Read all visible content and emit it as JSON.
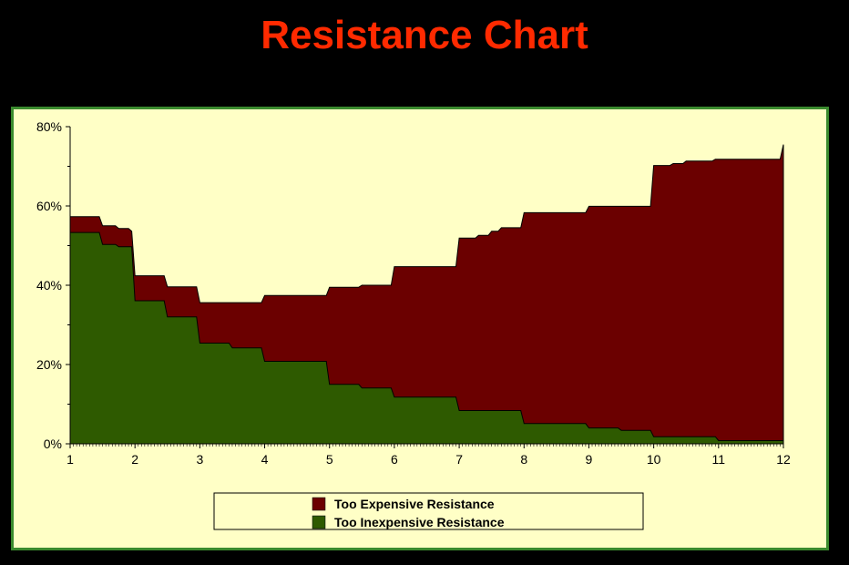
{
  "page": {
    "title": "Resistance Chart"
  },
  "colors": {
    "title": "#ff2a00",
    "background": "#000000",
    "panel_bg": "#ffffc6",
    "panel_border": "#3a8a2e",
    "too_expensive": "#6b0000",
    "too_inexpensive": "#2e5a00"
  },
  "chart_data": {
    "type": "area",
    "stacked": true,
    "xlim": [
      1,
      12
    ],
    "ylim": [
      0,
      80
    ],
    "x_ticks": [
      "1",
      "2",
      "3",
      "4",
      "5",
      "6",
      "7",
      "8",
      "9",
      "10",
      "11",
      "12"
    ],
    "y_ticks": [
      "0%",
      "20%",
      "40%",
      "60%",
      "80%"
    ],
    "grid": false,
    "legend_position": "bottom",
    "series": [
      {
        "name": "Too Expensive Resistance",
        "color": "#6b0000",
        "points": [
          [
            1,
            57.3
          ],
          [
            1.45,
            57.3
          ],
          [
            1.5,
            55.0
          ],
          [
            1.7,
            55.0
          ],
          [
            1.75,
            54.3
          ],
          [
            1.9,
            54.3
          ],
          [
            1.95,
            53.6
          ],
          [
            2,
            42.4
          ],
          [
            2.45,
            42.4
          ],
          [
            2.5,
            39.6
          ],
          [
            2.95,
            39.6
          ],
          [
            3,
            35.6
          ],
          [
            3.95,
            35.6
          ],
          [
            4,
            37.4
          ],
          [
            4.95,
            37.4
          ],
          [
            5,
            39.5
          ],
          [
            5.45,
            39.5
          ],
          [
            5.5,
            40.0
          ],
          [
            5.95,
            40.0
          ],
          [
            6,
            44.7
          ],
          [
            6.95,
            44.7
          ],
          [
            7,
            51.9
          ],
          [
            7.25,
            51.9
          ],
          [
            7.3,
            52.6
          ],
          [
            7.45,
            52.6
          ],
          [
            7.5,
            53.6
          ],
          [
            7.6,
            53.6
          ],
          [
            7.65,
            54.5
          ],
          [
            7.95,
            54.5
          ],
          [
            8,
            58.3
          ],
          [
            8.95,
            58.3
          ],
          [
            9,
            59.9
          ],
          [
            9.95,
            59.9
          ],
          [
            10,
            70.2
          ],
          [
            10.25,
            70.2
          ],
          [
            10.3,
            70.7
          ],
          [
            10.45,
            70.7
          ],
          [
            10.5,
            71.3
          ],
          [
            10.9,
            71.3
          ],
          [
            10.95,
            71.8
          ],
          [
            11.95,
            71.8
          ],
          [
            12,
            75.5
          ]
        ]
      },
      {
        "name": "Too Inexpensive Resistance",
        "color": "#2e5a00",
        "points": [
          [
            1,
            53.3
          ],
          [
            1.45,
            53.3
          ],
          [
            1.5,
            50.3
          ],
          [
            1.7,
            50.3
          ],
          [
            1.75,
            49.7
          ],
          [
            1.95,
            49.7
          ],
          [
            2,
            36.1
          ],
          [
            2.45,
            36.1
          ],
          [
            2.5,
            32.0
          ],
          [
            2.95,
            32.0
          ],
          [
            3,
            25.4
          ],
          [
            3.45,
            25.4
          ],
          [
            3.5,
            24.2
          ],
          [
            3.95,
            24.2
          ],
          [
            4,
            20.8
          ],
          [
            4.95,
            20.8
          ],
          [
            5,
            15.0
          ],
          [
            5.45,
            15.0
          ],
          [
            5.5,
            14.1
          ],
          [
            5.95,
            14.1
          ],
          [
            6,
            11.8
          ],
          [
            6.95,
            11.8
          ],
          [
            7,
            8.4
          ],
          [
            7.95,
            8.4
          ],
          [
            8,
            5.1
          ],
          [
            8.95,
            5.1
          ],
          [
            9,
            4.0
          ],
          [
            9.45,
            4.0
          ],
          [
            9.5,
            3.4
          ],
          [
            9.95,
            3.4
          ],
          [
            10,
            1.8
          ],
          [
            10.95,
            1.8
          ],
          [
            11,
            0.8
          ],
          [
            12,
            0.8
          ]
        ]
      }
    ]
  }
}
